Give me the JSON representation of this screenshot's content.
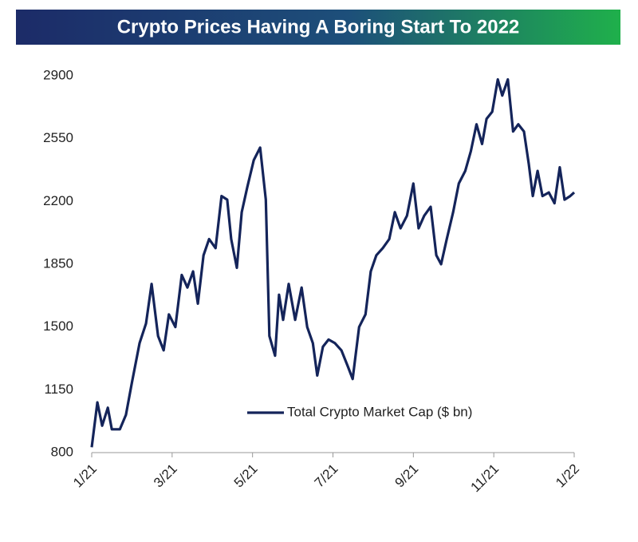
{
  "chart_data": {
    "type": "line",
    "title": "Crypto Prices Having A Boring Start To 2022",
    "x": [
      0,
      0.14,
      0.26,
      0.4,
      0.5,
      0.7,
      0.85,
      1.0,
      1.19,
      1.35,
      1.49,
      1.65,
      1.79,
      1.92,
      2.08,
      2.24,
      2.38,
      2.52,
      2.64,
      2.78,
      2.92,
      3.08,
      3.23,
      3.37,
      3.47,
      3.61,
      3.73,
      3.87,
      4.03,
      4.19,
      4.33,
      4.42,
      4.56,
      4.66,
      4.76,
      4.9,
      5.06,
      5.22,
      5.36,
      5.5,
      5.61,
      5.75,
      5.89,
      6.05,
      6.21,
      6.37,
      6.49,
      6.65,
      6.81,
      6.94,
      7.08,
      7.24,
      7.4,
      7.54,
      7.68,
      7.84,
      8.0,
      8.13,
      8.27,
      8.43,
      8.57,
      8.69,
      8.83,
      8.99,
      9.13,
      9.29,
      9.43,
      9.57,
      9.71,
      9.82,
      9.96,
      10.1,
      10.21,
      10.35,
      10.48,
      10.61,
      10.75,
      10.87,
      10.97,
      11.09,
      11.21,
      11.37,
      11.51,
      11.64,
      11.76,
      11.9,
      12.0
    ],
    "series": [
      {
        "name": "Total Crypto Market Cap ($ bn)",
        "color": "#14245a",
        "values": [
          830,
          1080,
          950,
          1050,
          930,
          930,
          1010,
          1190,
          1410,
          1520,
          1740,
          1450,
          1370,
          1570,
          1500,
          1790,
          1720,
          1810,
          1630,
          1900,
          1990,
          1940,
          2230,
          2210,
          1990,
          1830,
          2140,
          2280,
          2430,
          2500,
          2210,
          1450,
          1340,
          1680,
          1540,
          1740,
          1540,
          1720,
          1500,
          1410,
          1230,
          1390,
          1430,
          1410,
          1370,
          1280,
          1210,
          1500,
          1570,
          1810,
          1900,
          1940,
          1990,
          2140,
          2050,
          2120,
          2300,
          2050,
          2120,
          2170,
          1900,
          1850,
          1990,
          2140,
          2300,
          2370,
          2480,
          2630,
          2520,
          2660,
          2700,
          2880,
          2790,
          2880,
          2590,
          2630,
          2590,
          2410,
          2230,
          2370,
          2230,
          2250,
          2190,
          2390,
          2210,
          2230,
          2250
        ]
      }
    ],
    "xlim": [
      0,
      12
    ],
    "xticks": [
      {
        "value": 0,
        "label": "1/21"
      },
      {
        "value": 2,
        "label": "3/21"
      },
      {
        "value": 4,
        "label": "5/21"
      },
      {
        "value": 6,
        "label": "7/21"
      },
      {
        "value": 8,
        "label": "9/21"
      },
      {
        "value": 10,
        "label": "11/21"
      },
      {
        "value": 12,
        "label": "1/22"
      }
    ],
    "ylim": [
      800,
      2900
    ],
    "yticks": [
      800,
      1150,
      1500,
      1850,
      2200,
      2550,
      2900
    ],
    "grid": false,
    "legend": "lower right"
  }
}
